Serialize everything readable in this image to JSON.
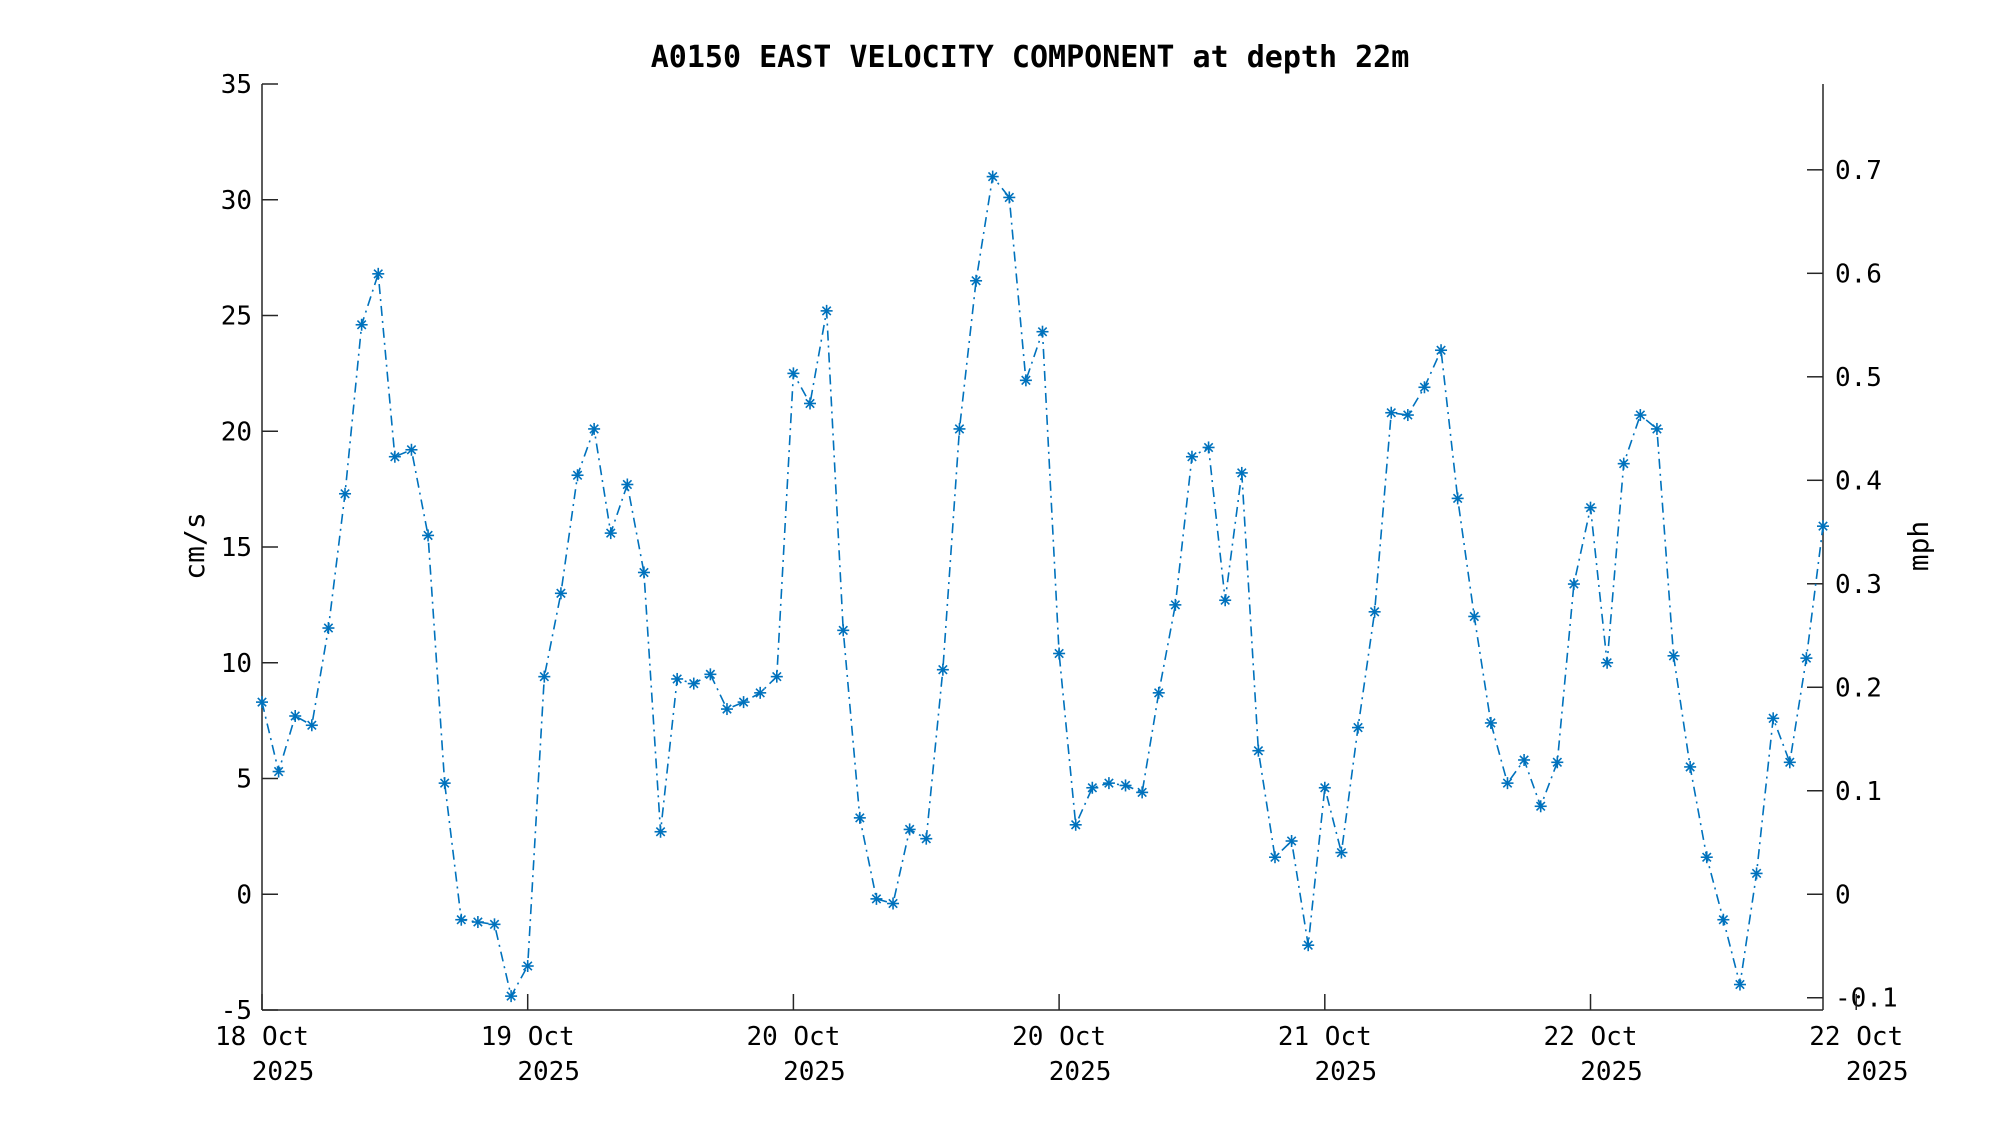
{
  "chart_data": {
    "type": "line",
    "title": "A0150 EAST VELOCITY COMPONENT at depth 22m",
    "ylabel": "cm/s",
    "ylabel_right": "mph",
    "ylim": [
      -5,
      35
    ],
    "yticks": [
      -5,
      0,
      5,
      10,
      15,
      20,
      25,
      30,
      35
    ],
    "yticks_right": [
      -0.1,
      0,
      0.1,
      0.2,
      0.3,
      0.4,
      0.5,
      0.6,
      0.7
    ],
    "x_ticks": [
      {
        "x": 0,
        "line1": "18 Oct",
        "line2": "2025"
      },
      {
        "x": 16,
        "line1": "19 Oct",
        "line2": "2025"
      },
      {
        "x": 32,
        "line1": "20 Oct",
        "line2": "2025"
      },
      {
        "x": 48,
        "line1": "20 Oct",
        "line2": "2025"
      },
      {
        "x": 64,
        "line1": "21 Oct",
        "line2": "2025"
      },
      {
        "x": 80,
        "line1": "22 Oct",
        "line2": "2025"
      },
      {
        "x": 96,
        "line1": "22 Oct",
        "line2": "2025"
      }
    ],
    "grid": false,
    "series": [
      {
        "color": "#0072BD",
        "line_style": "dash-dot",
        "marker": "asterisk",
        "values": [
          8.3,
          5.3,
          7.7,
          7.3,
          11.5,
          17.3,
          24.6,
          26.8,
          18.9,
          19.2,
          15.5,
          4.8,
          -1.1,
          -1.2,
          -1.3,
          -4.4,
          -3.1,
          9.4,
          13.0,
          18.1,
          20.1,
          15.6,
          17.7,
          13.9,
          2.7,
          9.3,
          9.1,
          9.5,
          8.0,
          8.3,
          8.7,
          9.4,
          22.5,
          21.2,
          25.2,
          11.4,
          3.3,
          -0.2,
          -0.4,
          2.8,
          2.4,
          9.7,
          20.1,
          26.5,
          31.0,
          30.1,
          22.2,
          24.3,
          10.4,
          3.0,
          4.6,
          4.8,
          4.7,
          4.4,
          8.7,
          12.5,
          18.9,
          19.3,
          12.7,
          18.2,
          6.2,
          1.6,
          2.3,
          -2.2,
          4.6,
          1.8,
          7.2,
          12.2,
          20.8,
          20.7,
          21.9,
          23.5,
          17.1,
          12.0,
          7.4,
          4.8,
          5.8,
          3.8,
          5.7,
          13.4,
          16.7,
          10.0,
          18.6,
          20.7,
          20.1,
          10.3,
          5.5,
          1.6,
          -1.1,
          -3.9,
          0.9,
          7.6,
          5.7,
          10.2,
          15.9
        ]
      }
    ]
  }
}
